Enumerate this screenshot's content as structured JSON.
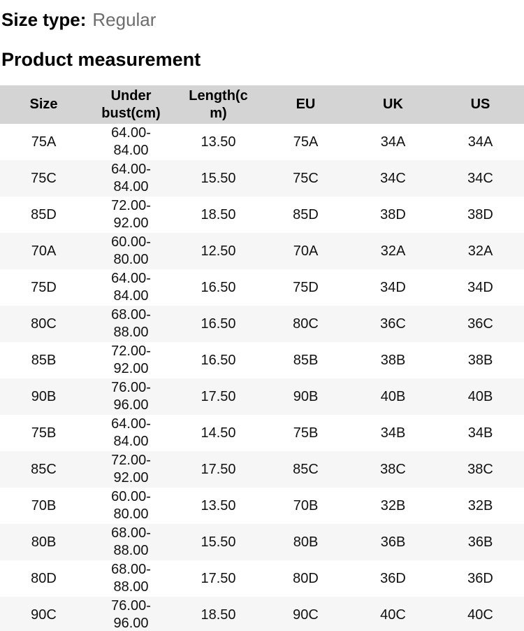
{
  "header": {
    "size_type_label": "Size type:",
    "size_type_value": "Regular",
    "section_title": "Product measurement"
  },
  "table": {
    "headers": [
      "Size",
      "Under bust(cm)",
      "Length(cm)",
      "EU",
      "UK",
      "US"
    ],
    "rows": [
      [
        "75A",
        "64.00-84.00",
        "13.50",
        "75A",
        "34A",
        "34A"
      ],
      [
        "75C",
        "64.00-84.00",
        "15.50",
        "75C",
        "34C",
        "34C"
      ],
      [
        "85D",
        "72.00-92.00",
        "18.50",
        "85D",
        "38D",
        "38D"
      ],
      [
        "70A",
        "60.00-80.00",
        "12.50",
        "70A",
        "32A",
        "32A"
      ],
      [
        "75D",
        "64.00-84.00",
        "16.50",
        "75D",
        "34D",
        "34D"
      ],
      [
        "80C",
        "68.00-88.00",
        "16.50",
        "80C",
        "36C",
        "36C"
      ],
      [
        "85B",
        "72.00-92.00",
        "16.50",
        "85B",
        "38B",
        "38B"
      ],
      [
        "90B",
        "76.00-96.00",
        "17.50",
        "90B",
        "40B",
        "40B"
      ],
      [
        "75B",
        "64.00-84.00",
        "14.50",
        "75B",
        "34B",
        "34B"
      ],
      [
        "85C",
        "72.00-92.00",
        "17.50",
        "85C",
        "38C",
        "38C"
      ],
      [
        "70B",
        "60.00-80.00",
        "13.50",
        "70B",
        "32B",
        "32B"
      ],
      [
        "80B",
        "68.00-88.00",
        "15.50",
        "80B",
        "36B",
        "36B"
      ],
      [
        "80D",
        "68.00-88.00",
        "17.50",
        "80D",
        "36D",
        "36D"
      ],
      [
        "90C",
        "76.00-96.00",
        "18.50",
        "90C",
        "40C",
        "40C"
      ]
    ]
  },
  "colors": {
    "header_bg": "#d4d4d4",
    "row_alt_bg": "#f6f6f6",
    "text": "#111111",
    "muted_text": "#6d6d6d",
    "scrollbar": "#2d2d2d"
  }
}
